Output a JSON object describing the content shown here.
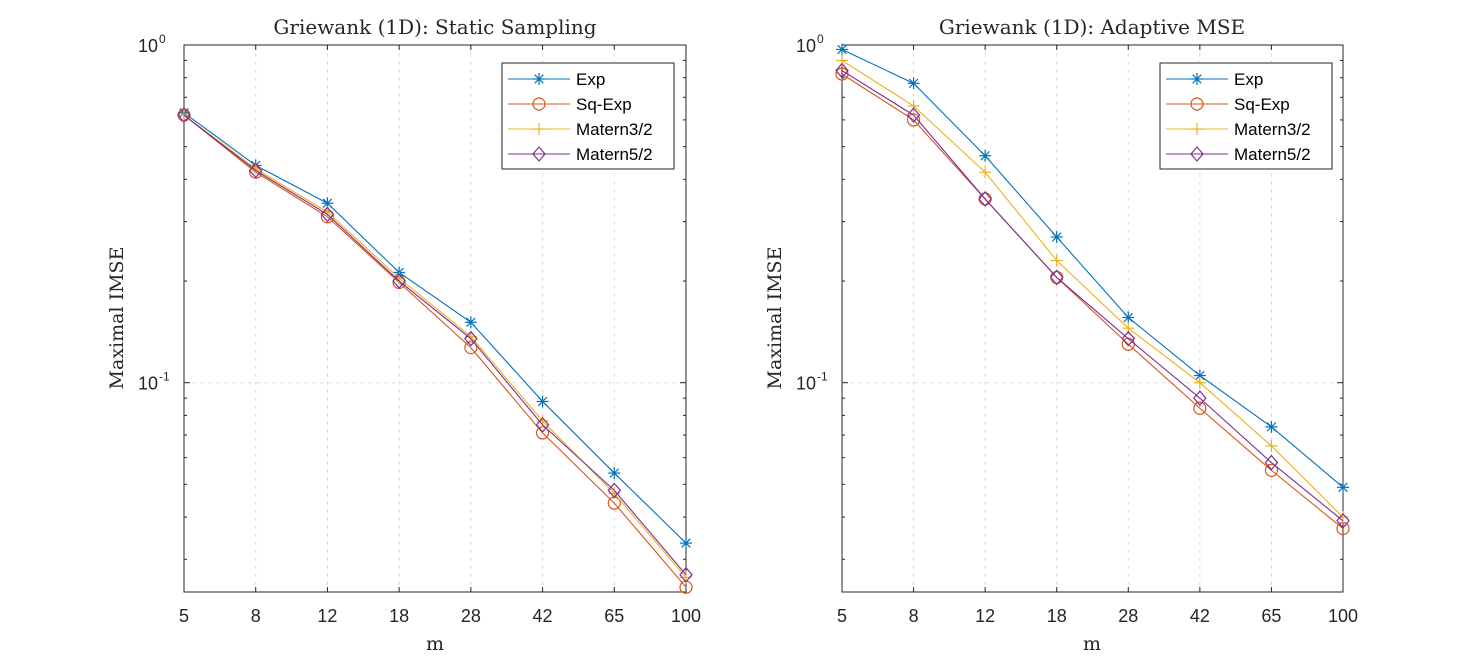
{
  "chart_data": [
    {
      "type": "line",
      "title": "Griewank (1D): Static Sampling",
      "xlabel": "m",
      "ylabel": "Maximal IMSE",
      "yscale": "log",
      "ylim": [
        0.024,
        1.0
      ],
      "categories": [
        "5",
        "8",
        "12",
        "18",
        "28",
        "42",
        "65",
        "100"
      ],
      "y_ticks": [
        {
          "base": "10",
          "exp": "0"
        },
        {
          "base": "10",
          "exp": "-1"
        }
      ],
      "legend": "top-right",
      "series": [
        {
          "name": "Exp",
          "color": "#0072BD",
          "marker": "asterisk",
          "values": [
            0.63,
            0.44,
            0.34,
            0.212,
            0.151,
            0.088,
            0.054,
            0.0335
          ]
        },
        {
          "name": "Sq-Exp",
          "color": "#D95319",
          "marker": "circle",
          "values": [
            0.62,
            0.42,
            0.31,
            0.198,
            0.127,
            0.071,
            0.044,
            0.0248
          ]
        },
        {
          "name": "Matern3/2",
          "color": "#EDB120",
          "marker": "plus",
          "values": [
            0.62,
            0.43,
            0.32,
            0.204,
            0.137,
            0.077,
            0.047,
            0.0265
          ]
        },
        {
          "name": "Matern5/2",
          "color": "#7E2F8E",
          "marker": "diamond",
          "values": [
            0.62,
            0.425,
            0.315,
            0.2,
            0.135,
            0.075,
            0.048,
            0.027
          ]
        }
      ]
    },
    {
      "type": "line",
      "title": "Griewank (1D): Adaptive MSE",
      "xlabel": "m",
      "ylabel": "Maximal IMSE",
      "yscale": "log",
      "ylim": [
        0.024,
        1.0
      ],
      "categories": [
        "5",
        "8",
        "12",
        "18",
        "28",
        "42",
        "65",
        "100"
      ],
      "y_ticks": [
        {
          "base": "10",
          "exp": "0"
        },
        {
          "base": "10",
          "exp": "-1"
        }
      ],
      "legend": "top-right",
      "series": [
        {
          "name": "Exp",
          "color": "#0072BD",
          "marker": "asterisk",
          "values": [
            0.97,
            0.77,
            0.47,
            0.27,
            0.156,
            0.105,
            0.074,
            0.049
          ]
        },
        {
          "name": "Sq-Exp",
          "color": "#D95319",
          "marker": "circle",
          "values": [
            0.82,
            0.6,
            0.35,
            0.205,
            0.13,
            0.084,
            0.055,
            0.037
          ]
        },
        {
          "name": "Matern3/2",
          "color": "#EDB120",
          "marker": "plus",
          "values": [
            0.9,
            0.66,
            0.42,
            0.23,
            0.145,
            0.1,
            0.065,
            0.04
          ]
        },
        {
          "name": "Matern5/2",
          "color": "#7E2F8E",
          "marker": "diamond",
          "values": [
            0.84,
            0.62,
            0.35,
            0.205,
            0.135,
            0.09,
            0.058,
            0.039
          ]
        }
      ]
    }
  ]
}
